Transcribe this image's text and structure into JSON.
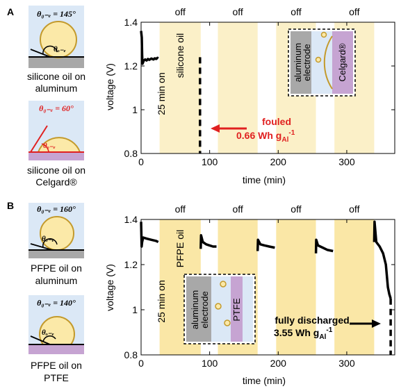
{
  "panels": [
    {
      "label": "A",
      "insets": [
        {
          "angle_text": "θ₀₋ₑ = 145°",
          "angle_color": "#000000",
          "drop_label": "θₒ₋ₑ",
          "caption": [
            "silicone oil on",
            "aluminum"
          ],
          "substrate": "aluminum"
        },
        {
          "angle_text": "θ₀₋ₑ = 60°",
          "angle_color": "#e02020",
          "drop_label": "θₒ₋ₑ",
          "caption": [
            "silicone oil on",
            "Celgard®"
          ],
          "substrate": "celgard"
        }
      ],
      "chart": {
        "ylabel": "voltage (V)",
        "xlabel": "time (min)",
        "off_label": "off",
        "first_on_label": "25 min on",
        "oil_label": "silicone oil",
        "annotation": {
          "text1": "fouled",
          "text2": "0.66 Wh g",
          "subscript": "Al",
          "superscript": "-1",
          "color": "#e02020"
        },
        "diagram": {
          "left_text": [
            "aluminum",
            "electrode"
          ],
          "right_text": "Celgard®"
        }
      }
    },
    {
      "label": "B",
      "insets": [
        {
          "angle_text": "θ₀₋ₑ = 160°",
          "angle_color": "#000000",
          "drop_label": "θₒ₋ₑ",
          "caption": [
            "PFPE oil on",
            "aluminum"
          ],
          "substrate": "aluminum"
        },
        {
          "angle_text": "θ₀₋ₑ = 140°",
          "angle_color": "#000000",
          "drop_label": "θₒ₋ₑ",
          "caption": [
            "PFPE oil on",
            "PTFE"
          ],
          "substrate": "ptfe"
        }
      ],
      "chart": {
        "ylabel": "voltage (V)",
        "xlabel": "time (min)",
        "off_label": "off",
        "first_on_label": "25 min on",
        "oil_label": "PFPE oil",
        "annotation": {
          "text1": "fully discharged",
          "text2": "3.55 Wh g",
          "subscript": "Al",
          "superscript": "-1",
          "color": "#000000"
        },
        "diagram": {
          "left_text": [
            "aluminum",
            "electrode"
          ],
          "right_text": "PTFE"
        }
      }
    }
  ],
  "chart_data": [
    {
      "type": "line",
      "xlabel": "time (min)",
      "ylabel": "voltage (V)",
      "xlim": [
        0,
        370
      ],
      "ylim": [
        0.8,
        1.4
      ],
      "xticks": [
        0,
        100,
        200,
        300
      ],
      "yticks": [
        0.8,
        1,
        1.2,
        1.4
      ],
      "off_periods": [
        [
          27,
          87
        ],
        [
          112,
          170
        ],
        [
          197,
          255
        ],
        [
          282,
          340
        ]
      ],
      "off_color": "#fbf0c8",
      "series": [
        {
          "style": "solid",
          "x": [
            0,
            1,
            1.5,
            2,
            4,
            6,
            8,
            10,
            12,
            15,
            18,
            20,
            22,
            24,
            25
          ],
          "y": [
            1.36,
            1.33,
            1.25,
            1.21,
            1.225,
            1.23,
            1.225,
            1.232,
            1.228,
            1.234,
            1.23,
            1.235,
            1.232,
            1.237,
            1.235
          ]
        },
        {
          "style": "dashed",
          "x": [
            86,
            86
          ],
          "y": [
            1.24,
            0.8
          ]
        }
      ]
    },
    {
      "type": "line",
      "xlabel": "time (min)",
      "ylabel": "voltage (V)",
      "xlim": [
        0,
        370
      ],
      "ylim": [
        0.8,
        1.4
      ],
      "xticks": [
        0,
        100,
        200,
        300
      ],
      "yticks": [
        0.8,
        1,
        1.2,
        1.4
      ],
      "off_periods": [
        [
          27,
          87
        ],
        [
          112,
          170
        ],
        [
          197,
          255
        ],
        [
          282,
          340
        ]
      ],
      "off_color": "#fae7a6",
      "series": [
        {
          "style": "solid",
          "x": [
            0,
            0.8,
            1.5,
            3,
            8,
            15,
            22,
            25
          ],
          "y": [
            1.39,
            1.28,
            1.3,
            1.32,
            1.315,
            1.31,
            1.305,
            1.3
          ]
        },
        {
          "style": "solid",
          "x": [
            87,
            87.5,
            90,
            95,
            100,
            105,
            110
          ],
          "y": [
            1.27,
            1.33,
            1.3,
            1.29,
            1.285,
            1.28,
            1.28
          ]
        },
        {
          "style": "solid",
          "x": [
            170,
            170.5,
            174,
            180,
            187,
            195
          ],
          "y": [
            1.26,
            1.31,
            1.29,
            1.285,
            1.28,
            1.275
          ]
        },
        {
          "style": "solid",
          "x": [
            255,
            255.5,
            258,
            265,
            272,
            280
          ],
          "y": [
            1.25,
            1.31,
            1.285,
            1.275,
            1.265,
            1.26
          ]
        },
        {
          "style": "solid",
          "x": [
            340,
            340.5,
            343,
            348,
            353,
            357,
            360,
            362,
            364
          ],
          "y": [
            1.3,
            1.39,
            1.3,
            1.28,
            1.25,
            1.2,
            1.1,
            1.07,
            1.05
          ]
        },
        {
          "style": "dashed",
          "x": [
            364,
            364
          ],
          "y": [
            1.05,
            0.8
          ]
        }
      ]
    }
  ]
}
